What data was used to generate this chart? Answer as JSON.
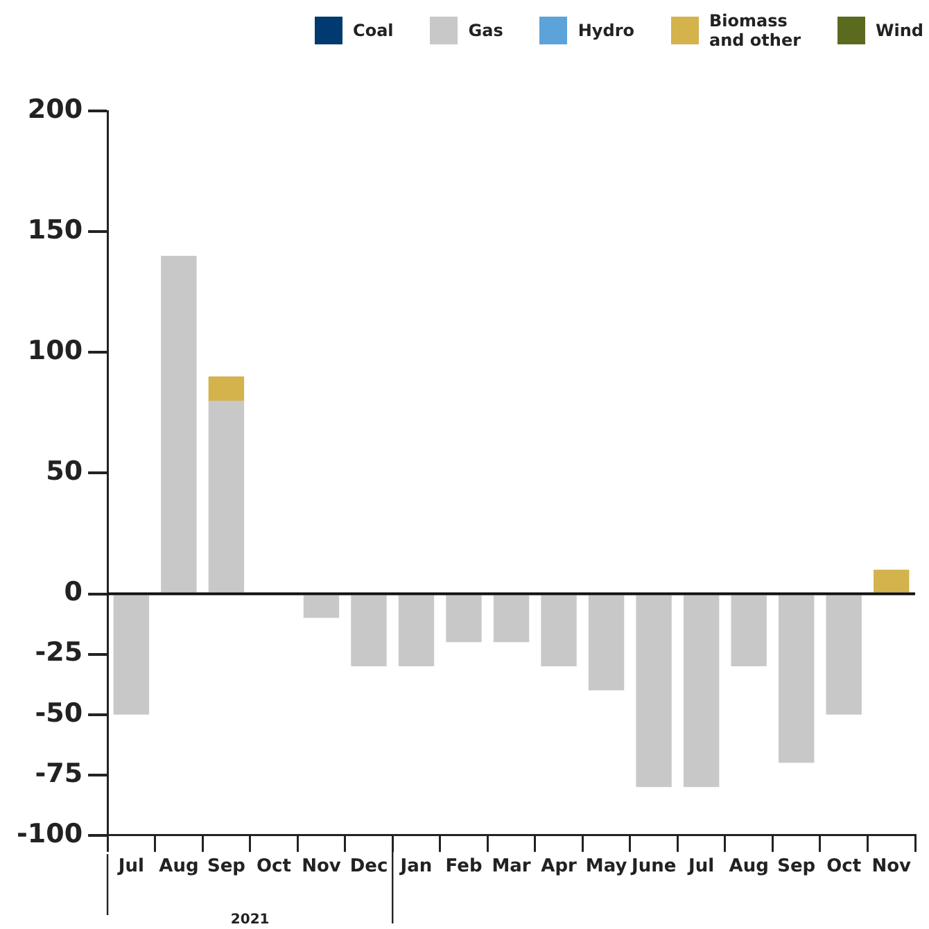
{
  "chart_data": {
    "type": "bar",
    "stacked": true,
    "legend": "top right",
    "grid": false,
    "categories": [
      "Jul",
      "Aug",
      "Sep",
      "Oct",
      "Nov",
      "Dec",
      "Jan",
      "Feb",
      "Mar",
      "Apr",
      "May",
      "June",
      "Jul",
      "Aug",
      "Sep",
      "Oct",
      "Nov"
    ],
    "series": [
      {
        "name": "Coal",
        "color": "#003a70",
        "values": [
          null,
          null,
          null,
          null,
          null,
          null,
          null,
          null,
          null,
          null,
          null,
          null,
          null,
          null,
          null,
          null,
          null
        ]
      },
      {
        "name": "Gas",
        "color": "#c8c8c8",
        "values": [
          -50,
          140,
          80,
          0,
          -10,
          -30,
          -30,
          -20,
          -20,
          -30,
          -40,
          -80,
          -80,
          -30,
          -70,
          -50,
          0
        ]
      },
      {
        "name": "Hydro",
        "color": "#5ba3d9",
        "values": [
          null,
          null,
          null,
          null,
          null,
          null,
          null,
          null,
          null,
          null,
          null,
          null,
          null,
          null,
          null,
          null,
          null
        ]
      },
      {
        "name": "Biomass\nand other",
        "color": "#d4b24c",
        "values": [
          null,
          null,
          10,
          null,
          null,
          null,
          null,
          null,
          null,
          null,
          null,
          null,
          null,
          null,
          null,
          null,
          10
        ]
      },
      {
        "name": "Wind",
        "color": "#5a6b1f",
        "values": [
          null,
          null,
          null,
          null,
          null,
          null,
          null,
          null,
          null,
          null,
          null,
          null,
          null,
          null,
          null,
          null,
          null
        ]
      }
    ],
    "ylim": [
      -100,
      200
    ],
    "yticks": [
      200,
      150,
      100,
      50,
      0,
      -25,
      -50,
      -75,
      -100
    ],
    "ref_lines": [
      {
        "axis": "y",
        "value": 0,
        "color": "#111111"
      }
    ],
    "annotations": [
      "2021"
    ]
  }
}
